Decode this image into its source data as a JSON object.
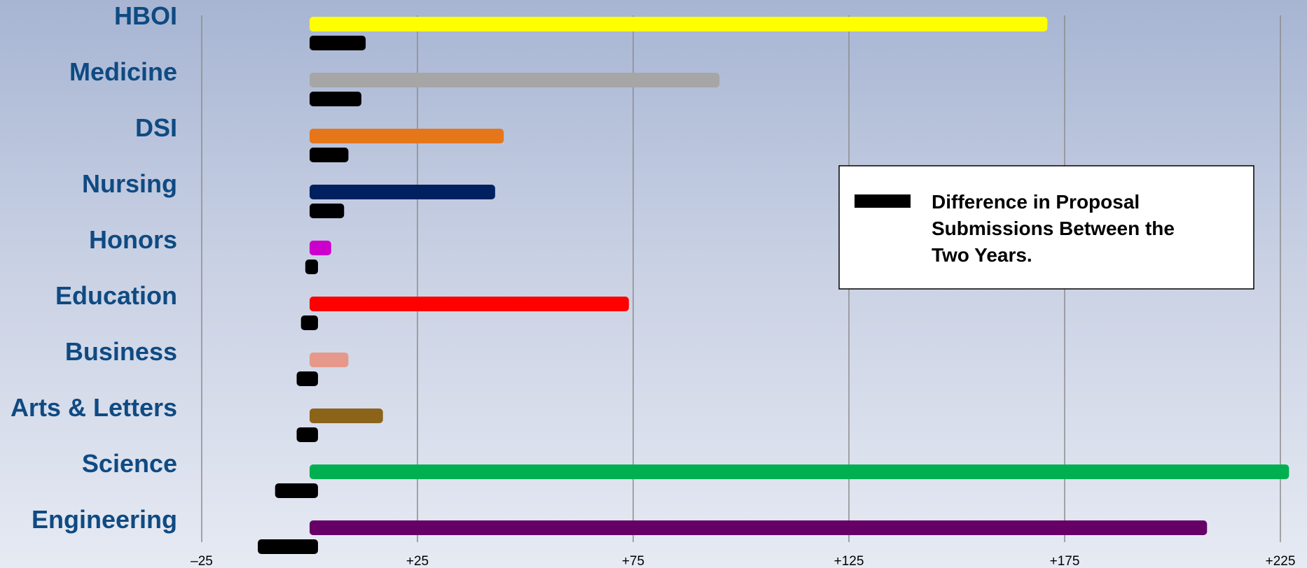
{
  "chart_data": {
    "type": "bar",
    "orientation": "horizontal",
    "categories": [
      "HBOI",
      "Medicine",
      "DSI",
      "Nursing",
      "Honors",
      "Education",
      "Business",
      "Arts & Letters",
      "Science",
      "Engineering"
    ],
    "category_label_color": "#0f4a82",
    "series": [
      {
        "values": [
          171,
          95,
          45,
          43,
          5,
          74,
          9,
          17,
          227,
          208
        ],
        "colors": [
          "#ffff00",
          "#a6a6a6",
          "#e6761a",
          "#002060",
          "#cc00cc",
          "#ff0000",
          "#e6998a",
          "#8b6419",
          "#00b050",
          "#660066"
        ]
      },
      {
        "name": "Difference in Proposal Submissions Between the Two Years.",
        "values": [
          13,
          12,
          9,
          8,
          -1,
          -2,
          -3,
          -3,
          -8,
          -12
        ],
        "color": "#000000"
      }
    ],
    "xlim": [
      -25,
      225
    ],
    "xticks": [
      -25,
      25,
      75,
      125,
      175,
      225
    ],
    "xtick_labels": [
      "–25",
      "+25",
      "+75",
      "+125",
      "+175",
      "+225"
    ],
    "legend": {
      "position": "right",
      "lines": [
        "Difference in Proposal",
        "Submissions Between the",
        "Two Years."
      ]
    },
    "grid": {
      "vertical": true,
      "color": "#8c8c8c"
    }
  }
}
